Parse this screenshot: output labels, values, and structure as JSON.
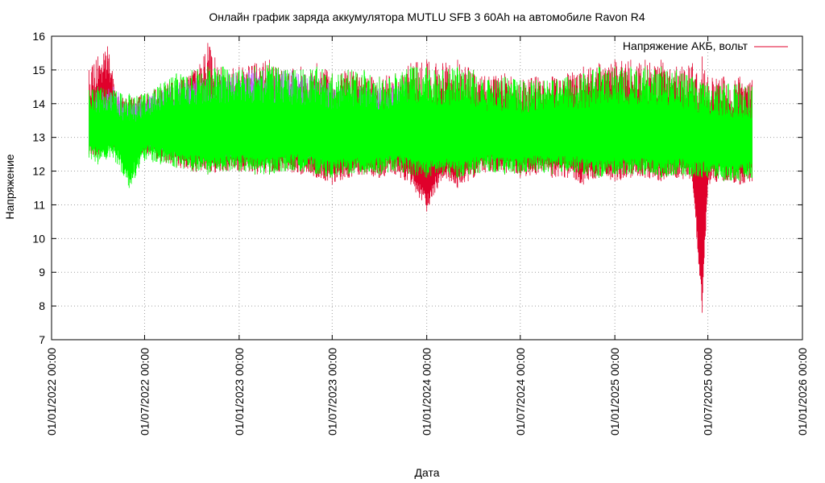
{
  "chart_data": {
    "type": "line",
    "title": "Онлайн график заряда аккумулятора MUTLU SFB 3 60Ah на автомобиле Ravon R4",
    "xlabel": "Дата",
    "ylabel": "Напряжение",
    "x_type": "date",
    "xlim": [
      "2022-01-01",
      "2026-01-01"
    ],
    "ylim": [
      7,
      16
    ],
    "y_ticks": [
      7,
      8,
      9,
      10,
      11,
      12,
      13,
      14,
      15,
      16
    ],
    "x_ticks": [
      "2022-01-01",
      "2022-07-01",
      "2023-01-01",
      "2023-07-01",
      "2024-01-01",
      "2024-07-01",
      "2025-01-01",
      "2025-07-01",
      "2026-01-01"
    ],
    "x_tick_labels": [
      "01/01/2022 00:00",
      "01/07/2022 00:00",
      "01/01/2023 00:00",
      "01/07/2023 00:00",
      "01/01/2024 00:00",
      "01/07/2024 00:00",
      "01/01/2025 00:00",
      "01/07/2025 00:00",
      "01/01/2026 00:00"
    ],
    "grid": true,
    "legend_position": "top-right",
    "series": [
      {
        "name": "Напряжение АКБ, вольт",
        "color": "#e0002b",
        "x": [
          "2022-03-15",
          "2022-04-01",
          "2022-04-20",
          "2022-05-10",
          "2022-06-01",
          "2022-07-01",
          "2022-08-01",
          "2022-09-01",
          "2022-10-01",
          "2022-11-01",
          "2022-12-01",
          "2023-01-01",
          "2023-02-01",
          "2023-03-01",
          "2023-04-01",
          "2023-05-01",
          "2023-06-01",
          "2023-07-01",
          "2023-08-01",
          "2023-09-01",
          "2023-10-01",
          "2023-11-01",
          "2023-12-01",
          "2024-01-01",
          "2024-02-01",
          "2024-03-01",
          "2024-04-01",
          "2024-05-01",
          "2024-06-01",
          "2024-07-01",
          "2024-08-01",
          "2024-09-01",
          "2024-10-01",
          "2024-11-01",
          "2024-12-01",
          "2025-01-01",
          "2025-02-01",
          "2025-03-01",
          "2025-04-01",
          "2025-05-01",
          "2025-06-01",
          "2025-06-20",
          "2025-07-01",
          "2025-08-01",
          "2025-09-01",
          "2025-09-25"
        ],
        "min": [
          12.5,
          12.4,
          12.6,
          12.6,
          12.5,
          12.5,
          12.3,
          12.1,
          12.0,
          11.9,
          12.0,
          12.0,
          11.9,
          11.9,
          12.0,
          11.9,
          11.8,
          11.6,
          11.8,
          11.9,
          11.8,
          11.9,
          11.6,
          10.8,
          11.8,
          11.5,
          11.8,
          12.0,
          11.9,
          11.8,
          11.9,
          11.8,
          11.8,
          11.6,
          11.8,
          11.7,
          11.8,
          11.8,
          11.7,
          11.8,
          11.7,
          7.8,
          11.6,
          11.7,
          11.6,
          11.7
        ],
        "max": [
          15.0,
          15.4,
          15.7,
          14.2,
          14.2,
          14.3,
          14.5,
          14.8,
          14.9,
          15.8,
          15.0,
          15.1,
          15.2,
          15.3,
          15.0,
          15.1,
          15.2,
          14.9,
          15.0,
          15.0,
          14.8,
          14.9,
          15.2,
          15.3,
          15.2,
          15.3,
          15.0,
          14.8,
          14.9,
          14.7,
          14.8,
          14.8,
          14.9,
          15.1,
          15.2,
          15.3,
          15.3,
          15.3,
          15.3,
          15.1,
          15.2,
          15.4,
          14.8,
          14.8,
          14.8,
          14.7
        ]
      },
      {
        "name": "",
        "color": "#b86bff",
        "x": [
          "2022-03-15",
          "2022-04-01",
          "2022-05-01",
          "2022-06-01",
          "2022-07-01",
          "2022-08-01",
          "2022-09-01",
          "2022-10-01",
          "2022-11-01",
          "2022-12-01",
          "2023-01-01",
          "2023-02-01",
          "2023-03-01",
          "2023-04-01",
          "2023-05-01",
          "2023-06-01",
          "2023-07-01",
          "2023-08-01",
          "2023-09-01",
          "2023-10-01",
          "2023-11-01",
          "2023-12-01"
        ],
        "min": [
          12.8,
          12.7,
          12.8,
          12.8,
          12.6,
          12.6,
          12.5,
          12.5,
          12.4,
          12.4,
          12.4,
          12.4,
          12.5,
          12.4,
          12.4,
          12.3,
          12.4,
          12.4,
          12.4,
          12.3,
          12.4,
          12.4
        ],
        "max": [
          13.5,
          14.5,
          14.5,
          14.0,
          14.2,
          14.4,
          14.6,
          14.8,
          14.8,
          14.9,
          15.0,
          15.0,
          15.0,
          15.0,
          15.0,
          14.8,
          14.6,
          14.6,
          14.5,
          14.5,
          14.6,
          14.8
        ]
      },
      {
        "name": "",
        "color": "#00ff00",
        "x": [
          "2022-03-15",
          "2022-04-01",
          "2022-05-01",
          "2022-06-01",
          "2022-07-01",
          "2022-08-01",
          "2022-09-01",
          "2022-10-01",
          "2022-11-01",
          "2022-12-01",
          "2023-01-01",
          "2023-02-01",
          "2023-03-01",
          "2023-04-01",
          "2023-05-01",
          "2023-06-01",
          "2023-07-01",
          "2023-08-01",
          "2023-09-01",
          "2023-10-01",
          "2023-11-01",
          "2023-12-01",
          "2024-01-01",
          "2024-02-01",
          "2024-03-01",
          "2024-04-01",
          "2024-05-01",
          "2024-06-01",
          "2024-07-01",
          "2024-08-01",
          "2024-09-01",
          "2024-10-01",
          "2024-11-01",
          "2024-12-01",
          "2025-01-01",
          "2025-02-01",
          "2025-03-01",
          "2025-04-01",
          "2025-05-01",
          "2025-06-01",
          "2025-07-01",
          "2025-08-01",
          "2025-09-01",
          "2025-09-25"
        ],
        "min": [
          12.4,
          12.2,
          12.4,
          11.5,
          12.3,
          12.2,
          12.1,
          12.0,
          11.9,
          12.0,
          12.0,
          11.9,
          11.9,
          12.0,
          12.0,
          11.9,
          11.8,
          11.9,
          11.9,
          11.9,
          12.0,
          11.9,
          11.8,
          11.9,
          11.8,
          11.9,
          12.0,
          11.9,
          11.9,
          12.0,
          11.9,
          12.0,
          11.9,
          11.8,
          11.9,
          11.9,
          11.9,
          11.8,
          11.9,
          11.8,
          11.8,
          11.7,
          11.7,
          11.8
        ],
        "max": [
          14.4,
          14.5,
          14.4,
          14.3,
          14.3,
          14.6,
          14.9,
          15.0,
          15.1,
          15.1,
          15.0,
          15.1,
          15.2,
          15.0,
          15.0,
          15.1,
          14.9,
          15.0,
          15.0,
          14.8,
          14.9,
          15.1,
          15.1,
          15.0,
          15.1,
          15.0,
          14.7,
          14.8,
          14.7,
          14.7,
          14.7,
          14.8,
          14.9,
          15.1,
          15.1,
          15.1,
          15.1,
          15.1,
          15.0,
          14.8,
          14.6,
          14.6,
          14.6,
          14.5
        ]
      }
    ]
  }
}
